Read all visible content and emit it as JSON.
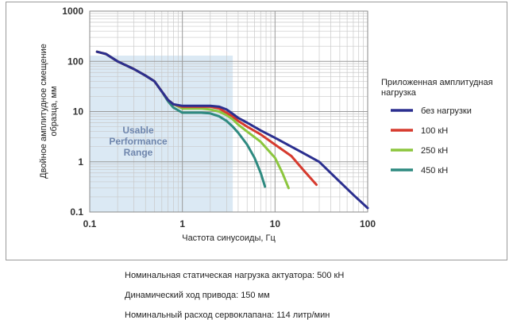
{
  "chart_data": {
    "type": "line",
    "xscale": "log",
    "yscale": "log",
    "xlim": [
      0.1,
      100
    ],
    "ylim": [
      0.1,
      1000
    ],
    "grid": true,
    "xlabel": "Частота синусоиды, Гц",
    "ylabel": "Двойное амплитудное смещение образца, мм",
    "x_ticks": [
      "0.1",
      "1",
      "10",
      "100"
    ],
    "y_ticks": [
      "0.1",
      "1",
      "10",
      "100",
      "1000"
    ],
    "legend_title": "Приложенная амплитудная нагрузка",
    "legend_position": "right",
    "annotation": "Usable Performance Range",
    "series": [
      {
        "name": "без нагрузки",
        "color": "#2b2f8f",
        "x": [
          0.12,
          0.15,
          0.2,
          0.3,
          0.4,
          0.5,
          0.6,
          0.7,
          0.8,
          1.0,
          1.3,
          1.6,
          2.0,
          2.5,
          3.0,
          3.5,
          4.0,
          5.0,
          7.0,
          10.0,
          15.0,
          20.0,
          30.0,
          50.0,
          70.0,
          100.0
        ],
        "y": [
          155,
          140,
          100,
          70,
          52,
          40,
          25,
          17,
          14,
          13,
          13,
          13,
          13,
          12.5,
          11,
          9,
          7.5,
          6,
          4.2,
          3.0,
          2.0,
          1.5,
          1.0,
          0.4,
          0.22,
          0.12
        ]
      },
      {
        "name": "100 кН",
        "color": "#d63a2e",
        "x": [
          0.12,
          0.15,
          0.2,
          0.3,
          0.4,
          0.5,
          0.6,
          0.7,
          0.8,
          1.0,
          1.3,
          1.6,
          2.0,
          2.5,
          3.0,
          3.5,
          4.0,
          5.0,
          7.0,
          10.0,
          15.0,
          20.0,
          28.0
        ],
        "y": [
          155,
          140,
          100,
          70,
          52,
          40,
          25,
          17,
          14,
          12.5,
          12.5,
          12.5,
          12.5,
          11.5,
          9.5,
          8,
          6.5,
          5,
          3.5,
          2.2,
          1.3,
          0.7,
          0.35
        ]
      },
      {
        "name": "250 кН",
        "color": "#8cc63e",
        "x": [
          0.12,
          0.15,
          0.2,
          0.3,
          0.4,
          0.5,
          0.6,
          0.7,
          0.8,
          1.0,
          1.3,
          1.6,
          2.0,
          2.5,
          3.0,
          3.5,
          4.0,
          5.0,
          7.0,
          10.0,
          12.0,
          14.0
        ],
        "y": [
          155,
          140,
          100,
          70,
          52,
          40,
          25,
          17,
          14,
          11.5,
          11.5,
          11.5,
          11,
          10,
          8.5,
          7,
          5.5,
          4,
          2.5,
          1.2,
          0.6,
          0.3
        ]
      },
      {
        "name": "450 кН",
        "color": "#2e8a80",
        "x": [
          0.12,
          0.15,
          0.2,
          0.3,
          0.4,
          0.5,
          0.6,
          0.7,
          0.8,
          1.0,
          1.3,
          1.6,
          2.0,
          2.5,
          3.0,
          3.5,
          4.0,
          5.0,
          6.0,
          7.0,
          7.8
        ],
        "y": [
          155,
          140,
          100,
          70,
          52,
          40,
          25,
          16,
          12,
          9.5,
          9.5,
          9.5,
          9.2,
          8,
          6.5,
          5,
          3.8,
          2.2,
          1.2,
          0.6,
          0.32
        ]
      }
    ]
  },
  "specs": [
    "Номинальная статическая нагрузка актуатора: 500 кН",
    "Динамический ход привода: 150 мм",
    "Номинальный расход сервоклапана: 114 литр/мин"
  ]
}
